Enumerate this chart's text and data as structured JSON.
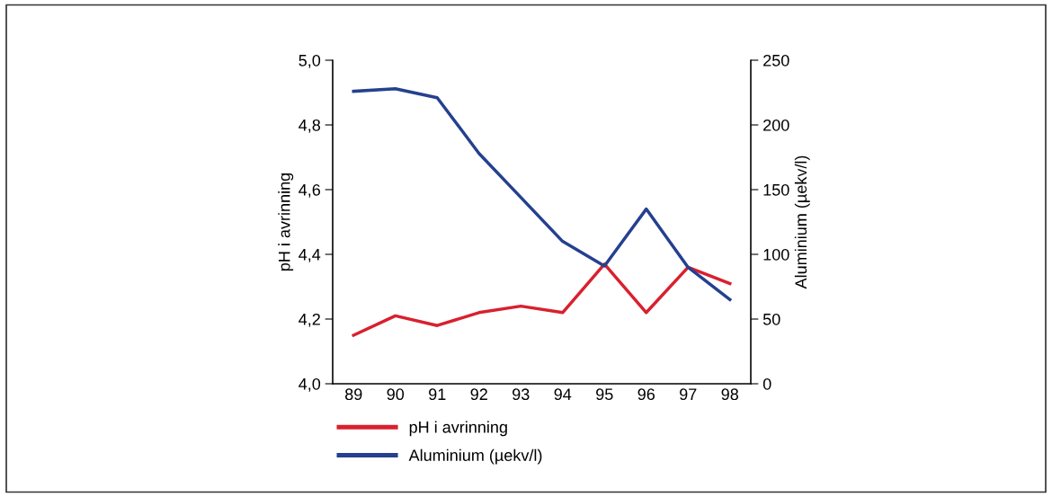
{
  "chart_data": {
    "type": "line",
    "categories": [
      "89",
      "90",
      "91",
      "92",
      "93",
      "94",
      "95",
      "96",
      "97",
      "98"
    ],
    "series": [
      {
        "name": "pH i avrinning",
        "color": "#d9202e",
        "values": [
          4.15,
          4.21,
          4.18,
          4.22,
          4.24,
          4.22,
          4.37,
          4.22,
          4.36,
          4.31
        ]
      },
      {
        "name": "Aluminium (µekv/l)",
        "color": "#25408f",
        "axis": "y2",
        "values": [
          226,
          228,
          221,
          178,
          144,
          110,
          91,
          135,
          90,
          65
        ]
      }
    ],
    "ylabel": "pH i avrinning",
    "y2label": "Aluminium (µekv/l)",
    "ylim": [
      4.0,
      5.0
    ],
    "yticks": [
      {
        "value": 4.0,
        "label": "4,0"
      },
      {
        "value": 4.2,
        "label": "4,2"
      },
      {
        "value": 4.4,
        "label": "4,4"
      },
      {
        "value": 4.6,
        "label": "4,6"
      },
      {
        "value": 4.8,
        "label": "4,8"
      },
      {
        "value": 5.0,
        "label": "5,0"
      }
    ],
    "y2lim": [
      0,
      250
    ],
    "y2ticks": [
      0,
      50,
      100,
      150,
      200,
      250
    ],
    "legend": "bottom",
    "grid": false,
    "marker": "none",
    "line_style": "solid"
  }
}
